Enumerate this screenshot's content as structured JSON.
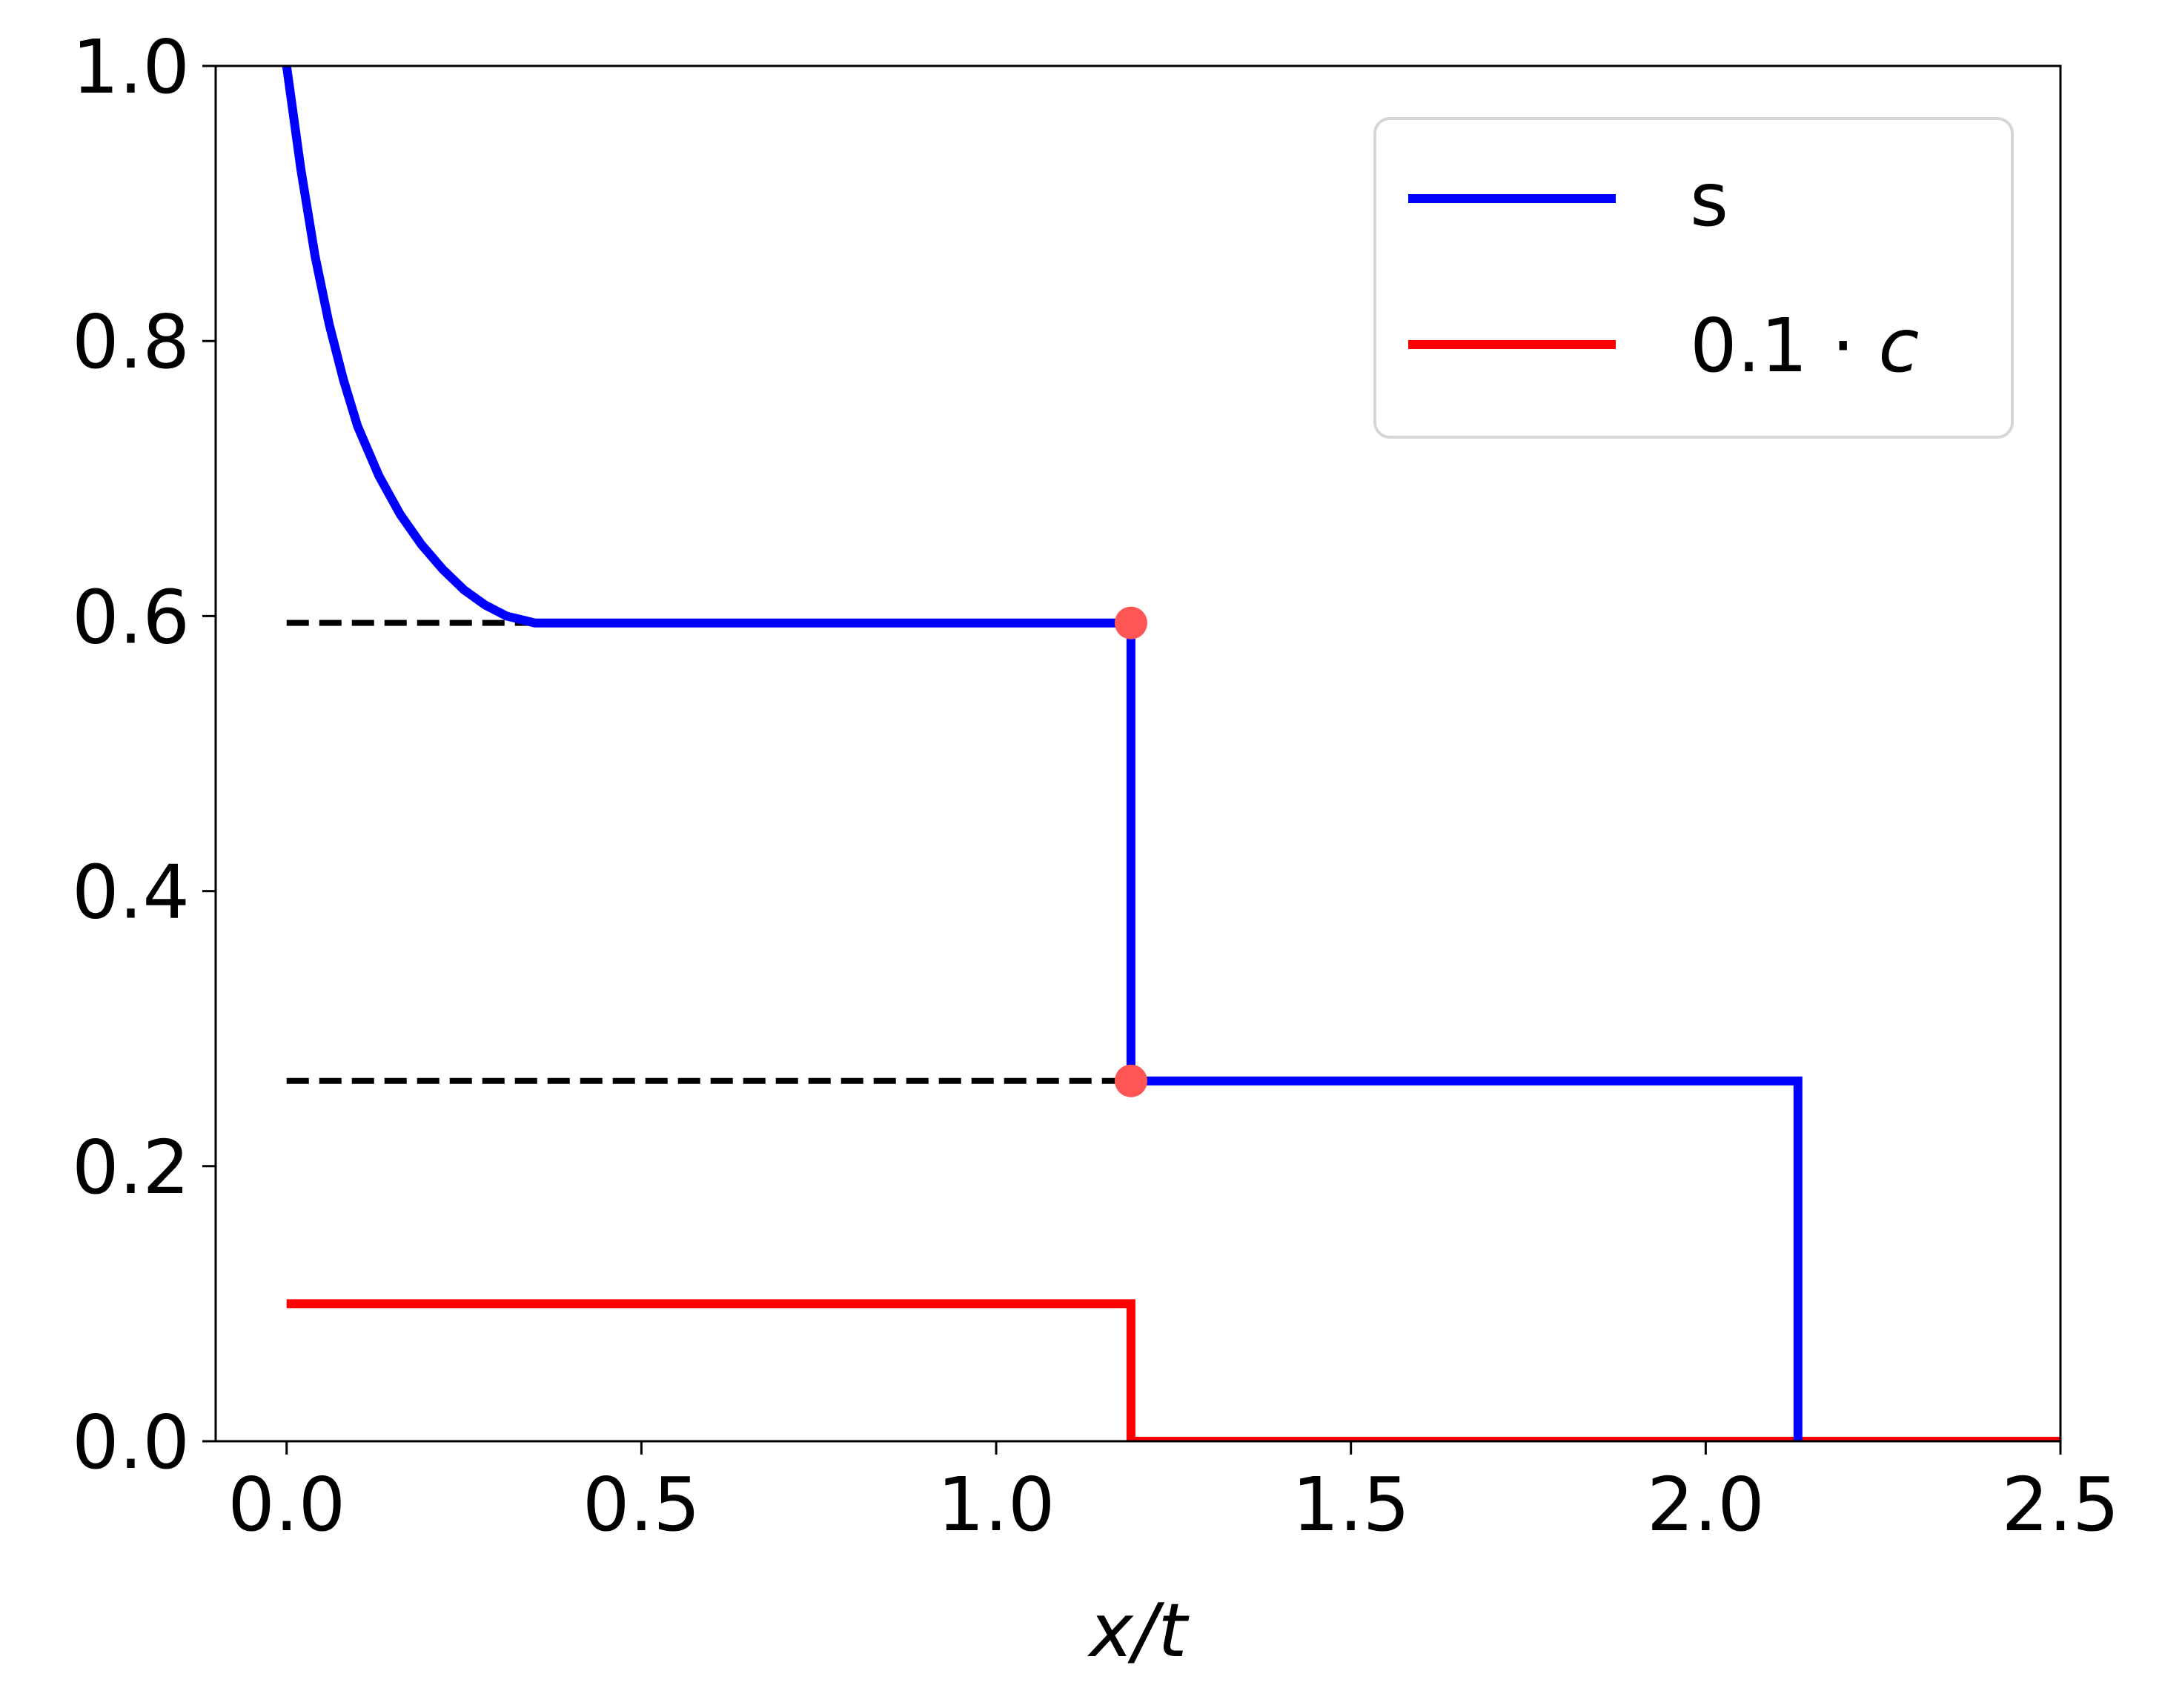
{
  "chart_data": {
    "type": "line",
    "xlabel": "x/t",
    "ylabel": "",
    "title": "",
    "xlim": [
      -0.1,
      2.5
    ],
    "ylim": [
      0.0,
      1.0
    ],
    "x_ticks": [
      0.0,
      0.5,
      1.0,
      1.5,
      2.0,
      2.5
    ],
    "x_tick_labels": [
      "0.0",
      "0.5",
      "1.0",
      "1.5",
      "2.0",
      "2.5"
    ],
    "y_ticks": [
      0.0,
      0.2,
      0.4,
      0.6,
      0.8,
      1.0
    ],
    "y_tick_labels": [
      "0.0",
      "0.2",
      "0.4",
      "0.6",
      "0.8",
      "1.0"
    ],
    "grid": false,
    "legend_position": "top-right",
    "series": [
      {
        "name": "s",
        "color": "#0000ff",
        "points": [
          [
            0.0,
            1.0
          ],
          [
            0.02,
            0.925
          ],
          [
            0.04,
            0.862
          ],
          [
            0.06,
            0.812
          ],
          [
            0.08,
            0.772
          ],
          [
            0.1,
            0.738
          ],
          [
            0.13,
            0.702
          ],
          [
            0.16,
            0.674
          ],
          [
            0.19,
            0.652
          ],
          [
            0.22,
            0.634
          ],
          [
            0.25,
            0.619
          ],
          [
            0.28,
            0.608
          ],
          [
            0.31,
            0.6
          ],
          [
            0.35,
            0.595
          ],
          [
            1.19,
            0.595
          ],
          [
            1.19,
            0.262
          ],
          [
            2.13,
            0.262
          ],
          [
            2.13,
            0.0
          ]
        ]
      },
      {
        "name": "0.1 · c",
        "name_base": "0.1 · ",
        "name_var": "c",
        "color": "#ff0000",
        "points": [
          [
            0.0,
            0.1
          ],
          [
            1.19,
            0.1
          ],
          [
            1.19,
            0.0
          ],
          [
            2.5,
            0.0
          ]
        ]
      }
    ],
    "reference_lines": [
      {
        "style": "dashed",
        "color": "#000000",
        "y": 0.595,
        "x_start": 0.0,
        "x_end": 0.35
      },
      {
        "style": "dashed",
        "color": "#000000",
        "y": 0.262,
        "x_start": 0.0,
        "x_end": 1.19
      }
    ],
    "markers": [
      {
        "x": 1.19,
        "y": 0.595,
        "color": "#ff5555"
      },
      {
        "x": 1.19,
        "y": 0.262,
        "color": "#ff5555"
      }
    ]
  }
}
